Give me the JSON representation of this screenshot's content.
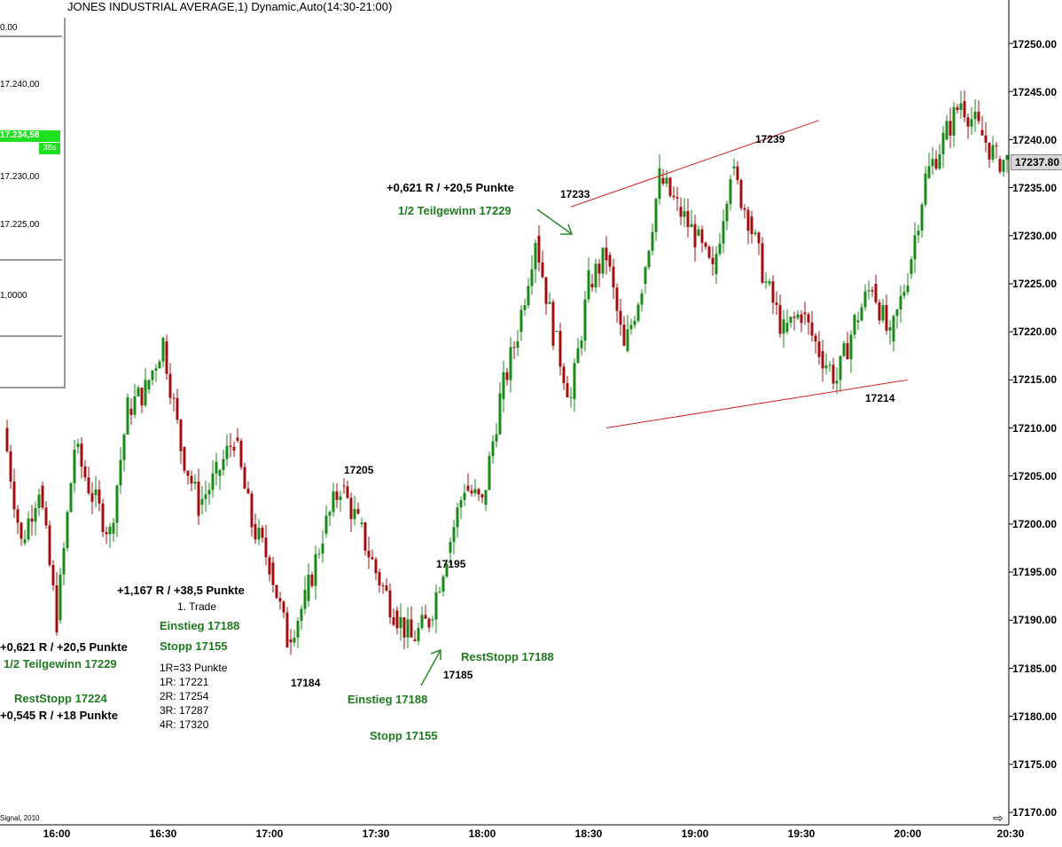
{
  "header": {
    "title": "JONES INDUSTRIAL AVERAGE,1) Dynamic,Auto(14:30-21:00)"
  },
  "inset": {
    "labels": [
      "0.00",
      "17.240,00",
      "17.234,58",
      "38s",
      "17.230,00",
      "17.225,00",
      "1,0000"
    ]
  },
  "footer": {
    "copyright": "Signal, 2010"
  },
  "price_box": "17237.80",
  "annotations": {
    "left_r": "+0,621 R / +20,5 Punkte",
    "left_teil": "1/2 Teilgewinn 17229",
    "left_rest": "RestStopp 17224",
    "left_r2": "+0,545 R / +18 Punkte",
    "mid_r": "+1,167 R / +38,5 Punkte",
    "mid_trade": "1. Trade",
    "mid_einstieg": "Einstieg 17188",
    "mid_stopp": "Stopp 17155",
    "mid_r_def": "1R=33 Punkte",
    "mid_1r": "1R: 17221",
    "mid_2r": "2R: 17254",
    "mid_3r": "3R: 17287",
    "mid_4r": "4R: 17320",
    "low_einstieg": "Einstieg 17188",
    "low_stopp": "Stopp 17155",
    "reststopp": "RestStopp 17188",
    "right_r": "+0,621 R / +20,5 Punkte",
    "right_teil": "1/2 Teilgewinn 17229"
  },
  "peaks": {
    "p17205": "17205",
    "p17184": "17184",
    "p17195": "17195",
    "p17185": "17185",
    "p17233": "17233",
    "p17239": "17239",
    "p17214": "17214"
  },
  "colors": {
    "up": "#1a8a1a",
    "down": "#a01010",
    "trendline": "#cc2222",
    "arrow": "#2a8a2a"
  },
  "chart_data": {
    "type": "candlestick",
    "title": "JONES INDUSTRIAL AVERAGE,1) Dynamic,Auto(14:30-21:00)",
    "x_ticks": [
      "16:00",
      "16:30",
      "17:00",
      "17:30",
      "18:00",
      "18:30",
      "19:00",
      "19:30",
      "20:00",
      "20:30"
    ],
    "y_ticks": [
      "17250.00",
      "17245.00",
      "17240.00",
      "17235.00",
      "17230.00",
      "17225.00",
      "17220.00",
      "17215.00",
      "17210.00",
      "17205.00",
      "17200.00",
      "17195.00",
      "17190.00",
      "17185.00",
      "17180.00",
      "17175.00",
      "17170.00"
    ],
    "ylim": [
      17170,
      17250
    ],
    "xlim": [
      "15:45",
      "20:30"
    ],
    "last_price": 17237.8,
    "series": [
      {
        "name": "close",
        "x": [
          "15:45",
          "15:50",
          "15:55",
          "16:00",
          "16:05",
          "16:10",
          "16:15",
          "16:20",
          "16:25",
          "16:30",
          "16:35",
          "16:40",
          "16:45",
          "16:50",
          "16:55",
          "17:00",
          "17:05",
          "17:10",
          "17:15",
          "17:20",
          "17:25",
          "17:30",
          "17:35",
          "17:40",
          "17:45",
          "17:50",
          "17:55",
          "18:00",
          "18:05",
          "18:10",
          "18:15",
          "18:20",
          "18:25",
          "18:30",
          "18:35",
          "18:40",
          "18:45",
          "18:50",
          "18:55",
          "19:00",
          "19:05",
          "19:10",
          "19:15",
          "19:20",
          "19:25",
          "19:30",
          "19:35",
          "19:40",
          "19:45",
          "19:50",
          "19:55",
          "20:00",
          "20:05",
          "20:10",
          "20:15",
          "20:20",
          "20:25",
          "20:28"
        ],
        "values": [
          17210,
          17198,
          17204,
          17190,
          17208,
          17203,
          17199,
          17212,
          17214,
          17219,
          17208,
          17202,
          17205,
          17209,
          17200,
          17196,
          17188,
          17192,
          17199,
          17204,
          17200,
          17195,
          17191,
          17188,
          17190,
          17197,
          17204,
          17202,
          17213,
          17220,
          17230,
          17220,
          17213,
          17225,
          17228,
          17218,
          17225,
          17236,
          17233,
          17230,
          17226,
          17237,
          17232,
          17225,
          17220,
          17222,
          17218,
          17215,
          17221,
          17225,
          17219,
          17226,
          17236,
          17240,
          17244,
          17241,
          17238,
          17237.8
        ]
      }
    ],
    "trendlines": [
      {
        "from": [
          "18:25",
          17233
        ],
        "to": [
          "19:35",
          17242
        ]
      },
      {
        "from": [
          "18:35",
          17210
        ],
        "to": [
          "20:00",
          17215
        ]
      }
    ]
  }
}
